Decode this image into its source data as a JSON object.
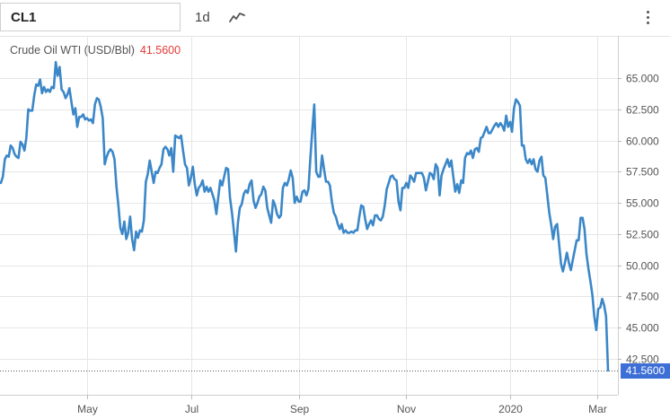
{
  "toolbar": {
    "symbol": "CL1",
    "interval": "1d",
    "chart_type_icon": "line-chart-icon",
    "menu_icon": "vertical-ellipsis-icon"
  },
  "legend": {
    "name": "Crude Oil WTI (USD/Bbl)",
    "value": "41.5600"
  },
  "last_price_label": "41.5600",
  "colors": {
    "line": "#3b87c8",
    "last_price_bg": "#3d6fd6",
    "legend_value": "#e53935",
    "grid": "#e6e6e6"
  },
  "chart_data": {
    "type": "line",
    "title": "",
    "xlabel": "",
    "ylabel": "",
    "ylim": [
      39.6,
      68.4
    ],
    "y_ticks": [
      "65.000",
      "62.500",
      "60.000",
      "57.500",
      "55.000",
      "52.500",
      "50.000",
      "47.500",
      "45.000",
      "42.500"
    ],
    "x_ticks": [
      "May",
      "Jul",
      "Sep",
      "Nov",
      "2020",
      "Mar"
    ],
    "grid": true,
    "last_value": 41.56,
    "series": [
      {
        "values": [
          56.6,
          57.1,
          58.5,
          58.8,
          58.7,
          59.6,
          59.4,
          58.9,
          58.7,
          58.6,
          59.9,
          59.7,
          59.2,
          60.2,
          62.5,
          62.4,
          62.4,
          63.6,
          64.5,
          64.4,
          64.9,
          63.8,
          64.3,
          63.9,
          64.1,
          63.9,
          64.3,
          64.2,
          66.3,
          65.2,
          65.9,
          64.1,
          63.9,
          63.4,
          63.7,
          64.2,
          63.1,
          62.1,
          62.6,
          61.1,
          61.9,
          61.9,
          62.1,
          61.7,
          61.8,
          61.6,
          61.7,
          61.4,
          62.9,
          63.4,
          63.3,
          62.7,
          61.8,
          58.1,
          58.7,
          59.1,
          59.3,
          59.1,
          58.5,
          56.3,
          54.8,
          53.0,
          52.5,
          53.5,
          52.1,
          52.6,
          53.9,
          52.1,
          51.2,
          52.7,
          52.2,
          52.8,
          52.7,
          53.6,
          56.7,
          57.3,
          58.4,
          57.5,
          56.6,
          57.5,
          57.4,
          57.8,
          58.1,
          59.3,
          59.5,
          59.3,
          58.8,
          59.4,
          57.5,
          60.4,
          60.3,
          60.2,
          60.4,
          59.2,
          58.1,
          57.8,
          56.4,
          57.0,
          57.9,
          56.5,
          55.6,
          56.2,
          56.4,
          56.8,
          55.9,
          56.3,
          55.9,
          56.2,
          55.7,
          55.2,
          54.1,
          55.5,
          56.8,
          56.4,
          57.1,
          57.8,
          57.7,
          55.4,
          54.2,
          52.7,
          51.1,
          53.4,
          54.6,
          54.9,
          55.7,
          56.0,
          55.8,
          56.5,
          56.8,
          55.2,
          54.6,
          55.0,
          55.5,
          55.7,
          56.3,
          56.0,
          54.6,
          54.0,
          53.4,
          55.2,
          54.8,
          54.1,
          53.8,
          54.0,
          56.2,
          56.6,
          56.4,
          56.9,
          57.6,
          57.0,
          55.0,
          55.5,
          55.1,
          55.1,
          55.9,
          56.0,
          55.6,
          56.1,
          58.5,
          60.8,
          62.9,
          57.5,
          57.1,
          57.1,
          58.8,
          57.7,
          56.7,
          56.7,
          56.4,
          55.1,
          54.2,
          53.9,
          53.3,
          52.9,
          53.3,
          52.6,
          52.8,
          52.6,
          52.6,
          52.7,
          52.6,
          52.8,
          52.8,
          53.9,
          54.8,
          54.7,
          53.7,
          52.9,
          53.3,
          53.6,
          53.2,
          54.0,
          54.0,
          53.7,
          53.6,
          53.9,
          54.8,
          56.1,
          56.6,
          57.1,
          57.2,
          56.9,
          56.8,
          55.1,
          54.4,
          56.2,
          56.2,
          56.6,
          56.2,
          57.2,
          57.0,
          56.7,
          57.4,
          57.4,
          57.4,
          57.4,
          57.0,
          56.0,
          56.7,
          57.4,
          57.3,
          56.9,
          58.1,
          57.8,
          55.6,
          57.2,
          57.7,
          58.1,
          58.5,
          57.9,
          58.4,
          57.1,
          55.9,
          56.5,
          55.8,
          56.8,
          56.6,
          58.6,
          59.0,
          58.9,
          59.2,
          58.6,
          59.3,
          59.4,
          59.1,
          60.2,
          60.3,
          60.7,
          61.1,
          60.6,
          60.6,
          60.9,
          61.2,
          61.4,
          61.1,
          61.4,
          61.2,
          60.8,
          62.0,
          61.1,
          61.5,
          60.7,
          62.6,
          63.3,
          63.1,
          62.8,
          59.6,
          59.6,
          58.5,
          58.2,
          58.5,
          58.1,
          58.5,
          57.7,
          57.5,
          58.4,
          58.7,
          57.2,
          57.0,
          55.6,
          54.2,
          53.2,
          52.1,
          53.1,
          53.3,
          51.7,
          50.1,
          49.5,
          50.2,
          51.0,
          50.2,
          49.6,
          50.4,
          51.2,
          52.0,
          52.0,
          53.8,
          53.8,
          52.9,
          50.9,
          49.7,
          48.7,
          47.6,
          45.9,
          44.8,
          46.5,
          46.6,
          47.3,
          46.8,
          45.9,
          41.56
        ]
      }
    ]
  }
}
